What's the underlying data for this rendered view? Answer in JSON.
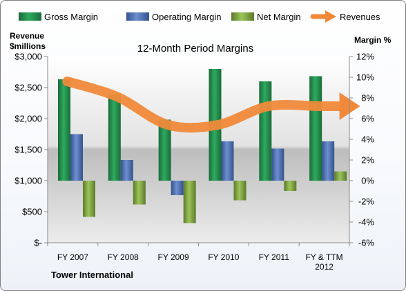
{
  "chart_data": {
    "type": "bar",
    "title": "12-Month Period Margins",
    "company": "Tower International",
    "categories": [
      "FY 2007",
      "FY 2008",
      "FY 2009",
      "FY 2010",
      "FY 2011",
      "FY & TTM 2012"
    ],
    "left_axis": {
      "label_line1": "Revenue",
      "label_line2": "$millions",
      "ylim": [
        0,
        3000
      ],
      "ticks": [
        0,
        500,
        1000,
        1500,
        2000,
        2500,
        3000
      ],
      "tick_labels": [
        "$-",
        "$500",
        "$1,000",
        "$1,500",
        "$2,000",
        "$2,500",
        "$3,000"
      ]
    },
    "right_axis": {
      "label": "Margin %",
      "ylim": [
        -6,
        12
      ],
      "ticks": [
        -6,
        -4,
        -2,
        0,
        2,
        4,
        6,
        8,
        10,
        12
      ],
      "tick_labels": [
        "-6%",
        "-4%",
        "-2%",
        "0%",
        "2%",
        "4%",
        "6%",
        "8%",
        "10%",
        "12%"
      ]
    },
    "series": [
      {
        "name": "Gross Margin",
        "kind": "bar",
        "axis": "right",
        "color": "#1f8a4a",
        "values": [
          9.8,
          8.3,
          5.9,
          10.8,
          9.6,
          10.1
        ]
      },
      {
        "name": "Operating Margin",
        "kind": "bar",
        "axis": "right",
        "color": "#4a6eb5",
        "values": [
          4.5,
          2.0,
          -1.4,
          3.8,
          3.1,
          3.8
        ]
      },
      {
        "name": "Net Margin",
        "kind": "bar",
        "axis": "right",
        "color": "#7a9f3e",
        "values": [
          -3.5,
          -2.3,
          -4.1,
          -1.9,
          -1.0,
          0.9
        ]
      },
      {
        "name": "Revenues",
        "kind": "line",
        "axis": "left",
        "color": "#f08a3a",
        "values": [
          2600,
          2350,
          1900,
          1900,
          2200,
          2200
        ]
      }
    ],
    "legend_position": "top",
    "grid": false
  }
}
